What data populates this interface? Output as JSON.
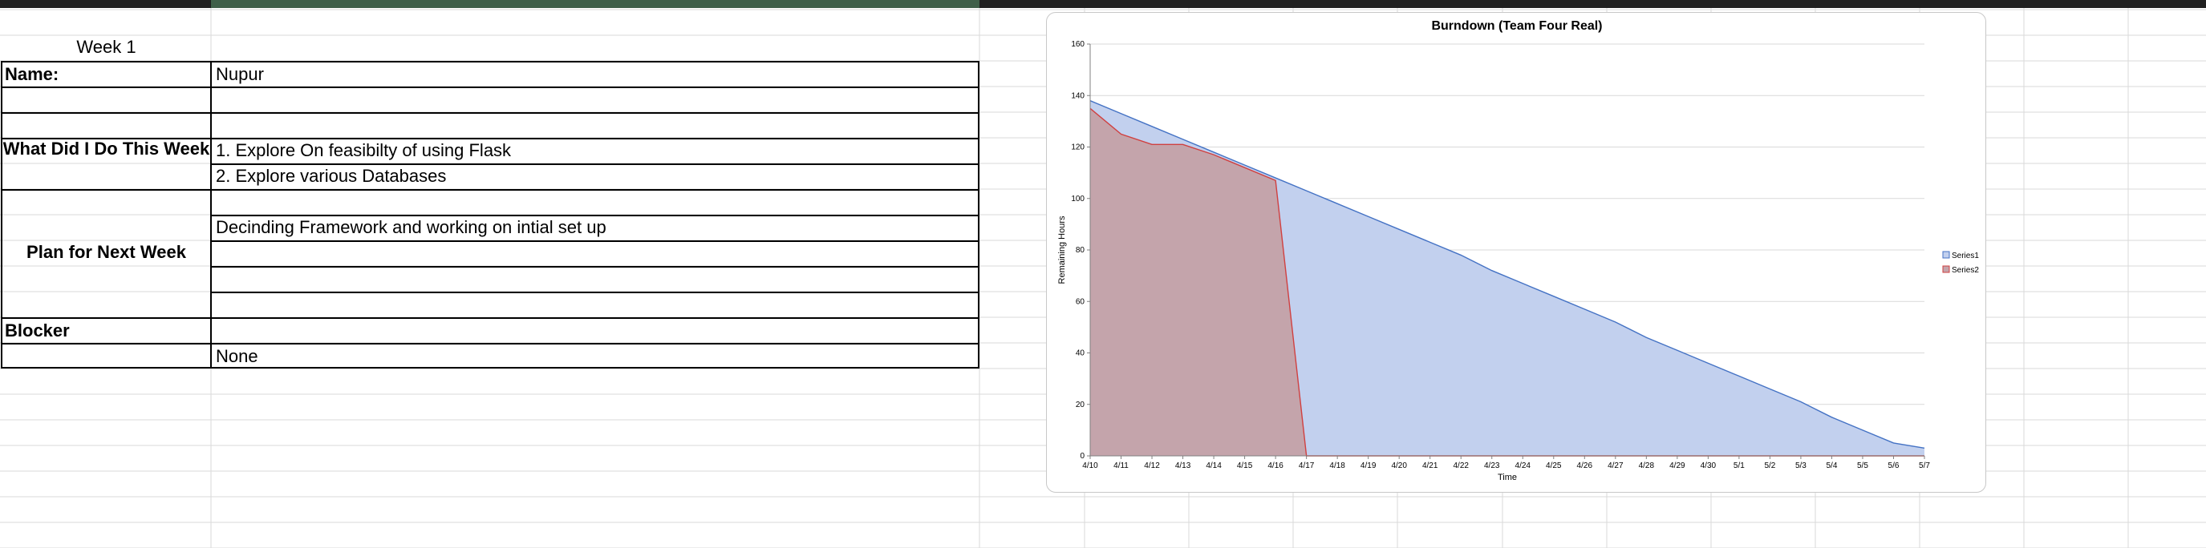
{
  "sheet": {
    "week_title": "Week 1",
    "name_label": "Name:",
    "name_value": "Nupur",
    "did_label": "What Did I Do This Week",
    "did_items": [
      "1. Explore On feasibilty of using Flask",
      "2. Explore various Databases"
    ],
    "plan_label": "Plan for Next Week",
    "plan_item": "Decinding Framework and working on intial set up",
    "blocker_label": "Blocker",
    "blocker_value": "None"
  },
  "chart_data": {
    "type": "area",
    "title": "Burndown (Team Four Real)",
    "xlabel": "Time",
    "ylabel": "Remaining Hours",
    "ylim": [
      0,
      160
    ],
    "yticks": [
      0,
      20,
      40,
      60,
      80,
      100,
      120,
      140,
      160
    ],
    "grid": true,
    "legend": "right",
    "categories": [
      "4/10",
      "4/11",
      "4/12",
      "4/13",
      "4/14",
      "4/15",
      "4/16",
      "4/17",
      "4/18",
      "4/19",
      "4/20",
      "4/21",
      "4/22",
      "4/23",
      "4/24",
      "4/25",
      "4/26",
      "4/27",
      "4/28",
      "4/29",
      "4/30",
      "5/1",
      "5/2",
      "5/3",
      "5/4",
      "5/5",
      "5/6",
      "5/7"
    ],
    "series": [
      {
        "name": "Series1",
        "color": "#4472c4",
        "fill": "#c2d0ee",
        "values": [
          138,
          133,
          128,
          123,
          118,
          113,
          108,
          103,
          98,
          93,
          88,
          83,
          78,
          72,
          67,
          62,
          57,
          52,
          46,
          41,
          36,
          31,
          26,
          21,
          15,
          10,
          5,
          3
        ]
      },
      {
        "name": "Series2",
        "color": "#d04040",
        "fill": "#c4a4ab",
        "values": [
          135,
          125,
          121,
          121,
          117,
          112,
          107,
          0,
          0,
          0,
          0,
          0,
          0,
          0,
          0,
          0,
          0,
          0,
          0,
          0,
          0,
          0,
          0,
          0,
          0,
          0,
          0,
          0
        ]
      }
    ]
  }
}
